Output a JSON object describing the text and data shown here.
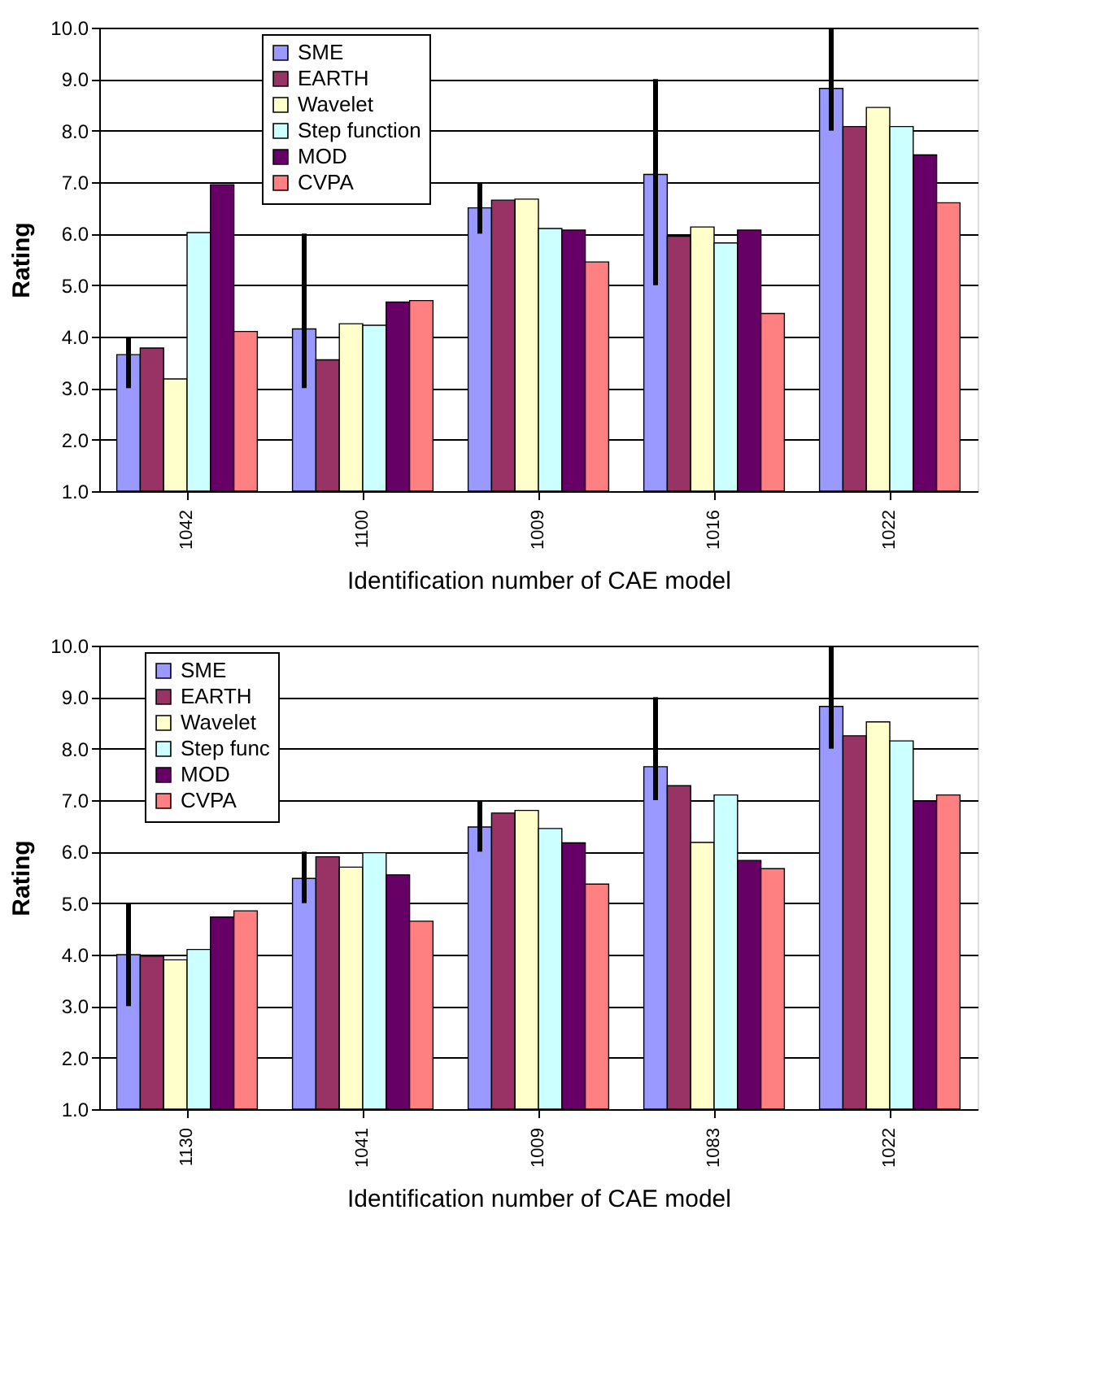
{
  "chart_data": [
    {
      "type": "bar",
      "xlabel": "Identification number of CAE model",
      "ylabel": "Rating",
      "categories": [
        "1042",
        "1100",
        "1009",
        "1016",
        "1022"
      ],
      "ylim": [
        1,
        10
      ],
      "yticks": [
        {
          "value": 1,
          "label": "1.0"
        },
        {
          "value": 2,
          "label": "2.0"
        },
        {
          "value": 3,
          "label": "3.0"
        },
        {
          "value": 4,
          "label": "4.0"
        },
        {
          "value": 5,
          "label": "5.0"
        },
        {
          "value": 6,
          "label": "6.0"
        },
        {
          "value": 7,
          "label": "7.0"
        },
        {
          "value": 8,
          "label": "8.0"
        },
        {
          "value": 9,
          "label": "9.0"
        },
        {
          "value": 10,
          "label": "10.0"
        }
      ],
      "grid": "y",
      "legend": "top left",
      "series": [
        {
          "name": "SME",
          "color": "#9999ff",
          "values": [
            3.65,
            4.15,
            6.5,
            7.15,
            8.82
          ],
          "errors": [
            [
              3,
              4
            ],
            [
              3,
              6
            ],
            [
              6,
              7
            ],
            [
              5,
              9
            ],
            [
              8,
              10
            ]
          ]
        },
        {
          "name": "EARTH",
          "color": "#993366",
          "values": [
            3.78,
            3.55,
            6.65,
            5.95,
            8.08
          ]
        },
        {
          "name": "Wavelet",
          "color": "#ffffcc",
          "values": [
            3.18,
            4.25,
            6.67,
            6.13,
            8.45
          ]
        },
        {
          "name": "Step function",
          "color": "#ccffff",
          "values": [
            6.02,
            4.22,
            6.1,
            5.82,
            8.08
          ]
        },
        {
          "name": "MOD",
          "color": "#660066",
          "values": [
            6.95,
            4.67,
            6.07,
            6.07,
            7.53
          ]
        },
        {
          "name": "CVPA",
          "color": "#ff8080",
          "values": [
            4.1,
            4.7,
            5.45,
            4.45,
            6.6
          ]
        }
      ]
    },
    {
      "type": "bar",
      "xlabel": "Identification number of CAE model",
      "ylabel": "Rating",
      "categories": [
        "1130",
        "1041",
        "1009",
        "1083",
        "1022"
      ],
      "ylim": [
        1,
        10
      ],
      "yticks": [
        {
          "value": 1,
          "label": "1.0"
        },
        {
          "value": 2,
          "label": "2.0"
        },
        {
          "value": 3,
          "label": "3.0"
        },
        {
          "value": 4,
          "label": "4.0"
        },
        {
          "value": 5,
          "label": "5.0"
        },
        {
          "value": 6,
          "label": "6.0"
        },
        {
          "value": 7,
          "label": "7.0"
        },
        {
          "value": 8,
          "label": "8.0"
        },
        {
          "value": 9,
          "label": "9.0"
        },
        {
          "value": 10,
          "label": "10.0"
        }
      ],
      "grid": "y",
      "legend": "top left",
      "series": [
        {
          "name": "SME",
          "color": "#9999ff",
          "values": [
            4.0,
            5.48,
            6.48,
            7.65,
            8.82
          ],
          "errors": [
            [
              3,
              5
            ],
            [
              5,
              6
            ],
            [
              6,
              7
            ],
            [
              7,
              9
            ],
            [
              8,
              10
            ]
          ]
        },
        {
          "name": "EARTH",
          "color": "#993366",
          "values": [
            3.97,
            5.9,
            6.75,
            7.28,
            8.25
          ]
        },
        {
          "name": "Wavelet",
          "color": "#ffffcc",
          "values": [
            3.9,
            5.7,
            6.8,
            6.18,
            8.52
          ]
        },
        {
          "name": "Step func",
          "color": "#ccffff",
          "values": [
            4.1,
            5.98,
            6.45,
            7.1,
            8.15
          ]
        },
        {
          "name": "MOD",
          "color": "#660066",
          "values": [
            4.73,
            5.55,
            6.17,
            5.83,
            6.98
          ]
        },
        {
          "name": "CVPA",
          "color": "#ff8080",
          "values": [
            4.85,
            4.65,
            5.37,
            5.67,
            7.1
          ]
        }
      ]
    }
  ]
}
